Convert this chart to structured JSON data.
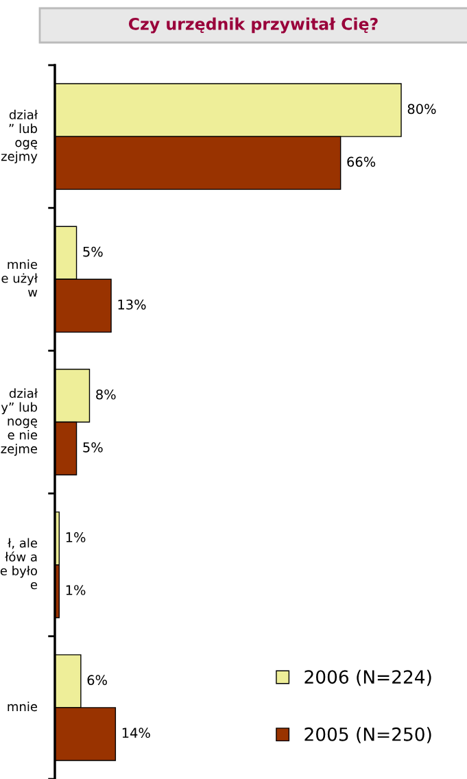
{
  "chart_data": {
    "type": "bar",
    "orientation": "horizontal",
    "title": "Czy urzędnik przywitał Cię?",
    "categories": [
      "dział\n” lub\nogę\nzejmy",
      "mnie\ne użył\nw",
      "dział\ny” lub\nnogę\ne nie\nzejme",
      "ł, ale\nłów a\ne było\ne",
      "mnie"
    ],
    "series": [
      {
        "name": "2006 (N=224)",
        "color": "#eeee99",
        "values": [
          80,
          5,
          8,
          1,
          6
        ],
        "value_labels": [
          "80%",
          "5%",
          "8%",
          "1%",
          "6%"
        ]
      },
      {
        "name": "2005 (N=250)",
        "color": "#993300",
        "values": [
          66,
          13,
          5,
          1,
          14
        ],
        "value_labels": [
          "66%",
          "13%",
          "5%",
          "1%",
          "14%"
        ]
      }
    ],
    "legend": "bottom right",
    "grid": false,
    "tick_labels": "y"
  }
}
